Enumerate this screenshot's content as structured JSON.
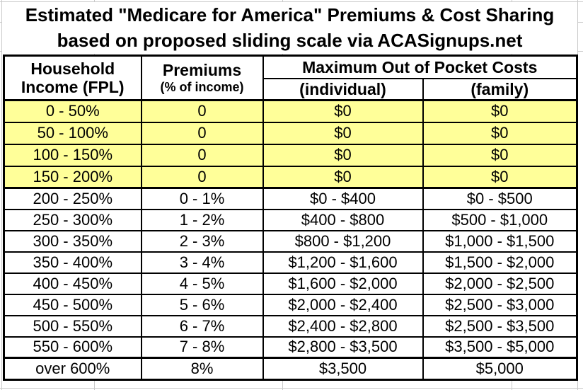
{
  "title": {
    "line1": "Estimated \"Medicare for America\" Premiums & Cost Sharing",
    "line2": "based on proposed sliding scale via ACASignups.net"
  },
  "header": {
    "income_line1": "Household",
    "income_line2": "Income (FPL)",
    "premiums_line1": "Premiums",
    "premiums_line2": "(% of income)",
    "moop": "Maximum Out of Pocket Costs",
    "individual": "(individual)",
    "family": "(family)"
  },
  "colors": {
    "highlight_yellow": "#FFFF99",
    "border_black": "#000000",
    "gridline_gray": "#C9C9C9",
    "text_black": "#000000"
  },
  "chart_data": {
    "type": "table",
    "title": "Estimated \"Medicare for America\" Premiums & Cost Sharing",
    "subtitle": "based on proposed sliding scale via ACASignups.net",
    "columns": [
      "Household Income (FPL)",
      "Premiums (% of income)",
      "Maximum Out of Pocket Costs (individual)",
      "Maximum Out of Pocket Costs (family)"
    ],
    "rows": [
      {
        "income": "0 - 50%",
        "premium": "0",
        "individual": "$0",
        "family": "$0",
        "highlight": true
      },
      {
        "income": "50 - 100%",
        "premium": "0",
        "individual": "$0",
        "family": "$0",
        "highlight": true
      },
      {
        "income": "100 - 150%",
        "premium": "0",
        "individual": "$0",
        "family": "$0",
        "highlight": true
      },
      {
        "income": "150 - 200%",
        "premium": "0",
        "individual": "$0",
        "family": "$0",
        "highlight": true
      },
      {
        "income": "200 - 250%",
        "premium": "0 - 1%",
        "individual": "$0 - $400",
        "family": "$0 - $500",
        "highlight": false
      },
      {
        "income": "250 - 300%",
        "premium": "1 - 2%",
        "individual": "$400 - $800",
        "family": "$500 - $1,000",
        "highlight": false
      },
      {
        "income": "300 - 350%",
        "premium": "2 - 3%",
        "individual": "$800 - $1,200",
        "family": "$1,000 - $1,500",
        "highlight": false
      },
      {
        "income": "350 - 400%",
        "premium": "3 - 4%",
        "individual": "$1,200 - $1,600",
        "family": "$1,500 - $2,000",
        "highlight": false
      },
      {
        "income": "400 - 450%",
        "premium": "4 - 5%",
        "individual": "$1,600 - $2,000",
        "family": "$2,000 - $2,500",
        "highlight": false
      },
      {
        "income": "450 - 500%",
        "premium": "5 - 6%",
        "individual": "$2,000 - $2,400",
        "family": "$2,500 - $3,000",
        "highlight": false
      },
      {
        "income": "500 - 550%",
        "premium": "6 - 7%",
        "individual": "$2,400 - $2,800",
        "family": "$2,500 - $3,500",
        "highlight": false
      },
      {
        "income": "550 - 600%",
        "premium": "7 - 8%",
        "individual": "$2,800 - $3,500",
        "family": "$3,500 - $5,000",
        "highlight": false
      },
      {
        "income": "over 600%",
        "premium": "8%",
        "individual": "$3,500",
        "family": "$5,000",
        "highlight": false
      }
    ]
  }
}
